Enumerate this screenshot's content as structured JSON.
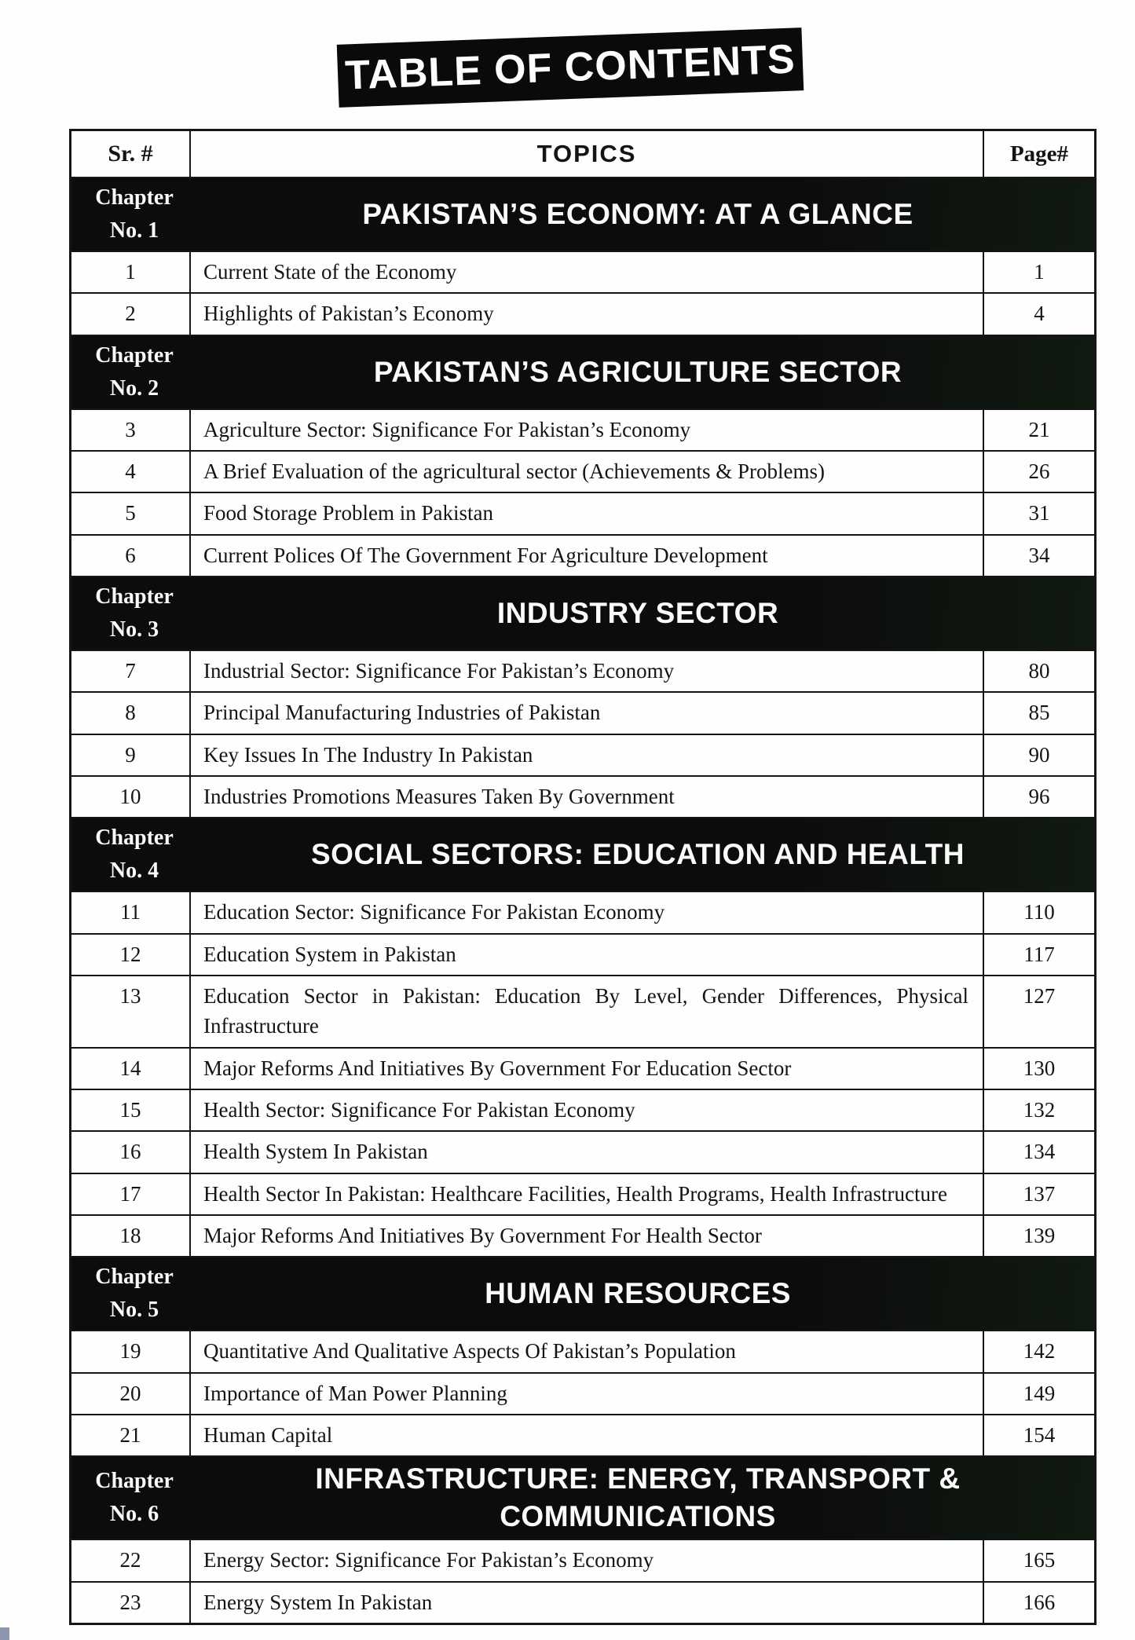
{
  "page": {
    "title": "TABLE OF CONTENTS"
  },
  "colors": {
    "band_black": "#0c0c0c",
    "paper": "#fefefe",
    "ink": "#141414",
    "artifact_blue": "#8c96ad"
  },
  "toc": {
    "headers": {
      "sr": "Sr. #",
      "topics": "TOPICS",
      "page": "Page#"
    },
    "sections": [
      {
        "chapter": "Chapter",
        "number": "No. 1",
        "title": "PAKISTAN’S ECONOMY: AT A GLANCE",
        "rows": [
          {
            "sr": "1",
            "topic": "Current State of the Economy",
            "page": "1"
          },
          {
            "sr": "2",
            "topic": "Highlights of Pakistan’s Economy",
            "page": "4"
          }
        ]
      },
      {
        "chapter": "Chapter",
        "number": "No. 2",
        "title": "PAKISTAN’S AGRICULTURE SECTOR",
        "rows": [
          {
            "sr": "3",
            "topic": "Agriculture Sector: Significance For Pakistan’s Economy",
            "page": "21"
          },
          {
            "sr": "4",
            "topic": "A Brief Evaluation of the agricultural sector (Achievements & Problems)",
            "page": "26"
          },
          {
            "sr": "5",
            "topic": "Food Storage Problem in Pakistan",
            "page": "31"
          },
          {
            "sr": "6",
            "topic": "Current Polices Of The Government For Agriculture Development",
            "page": "34"
          }
        ]
      },
      {
        "chapter": "Chapter",
        "number": "No. 3",
        "title": "INDUSTRY SECTOR",
        "rows": [
          {
            "sr": "7",
            "topic": "Industrial Sector: Significance For Pakistan’s Economy",
            "page": "80"
          },
          {
            "sr": "8",
            "topic": "Principal Manufacturing Industries of Pakistan",
            "page": "85"
          },
          {
            "sr": "9",
            "topic": "Key Issues In The Industry In Pakistan",
            "page": "90"
          },
          {
            "sr": "10",
            "topic": "Industries Promotions Measures Taken By Government",
            "page": "96"
          }
        ]
      },
      {
        "chapter": "Chapter",
        "number": "No. 4",
        "title": "SOCIAL SECTORS: EDUCATION AND HEALTH",
        "rows": [
          {
            "sr": "11",
            "topic": "Education Sector: Significance For Pakistan Economy",
            "page": "110"
          },
          {
            "sr": "12",
            "topic": "Education System in Pakistan",
            "page": "117"
          },
          {
            "sr": "13",
            "topic": "Education Sector in Pakistan: Education By Level, Gender Differences, Physical Infrastructure",
            "page": "127"
          },
          {
            "sr": "14",
            "topic": "Major Reforms And Initiatives By Government For Education Sector",
            "page": "130"
          },
          {
            "sr": "15",
            "topic": "Health Sector: Significance For Pakistan Economy",
            "page": "132"
          },
          {
            "sr": "16",
            "topic": "Health System In Pakistan",
            "page": "134"
          },
          {
            "sr": "17",
            "topic": "Health Sector In Pakistan: Healthcare Facilities, Health Programs, Health Infrastructure",
            "page": "137"
          },
          {
            "sr": "18",
            "topic": "Major Reforms And Initiatives By Government For Health Sector",
            "page": "139"
          }
        ]
      },
      {
        "chapter": "Chapter",
        "number": "No. 5",
        "title": "HUMAN RESOURCES",
        "rows": [
          {
            "sr": "19",
            "topic": "Quantitative And Qualitative Aspects Of Pakistan’s Population",
            "page": "142"
          },
          {
            "sr": "20",
            "topic": "Importance of Man Power Planning",
            "page": "149"
          },
          {
            "sr": "21",
            "topic": "Human Capital",
            "page": "154"
          }
        ]
      },
      {
        "chapter": "Chapter",
        "number": "No. 6",
        "title": "INFRASTRUCTURE: ENERGY, TRANSPORT &",
        "title2": "COMMUNICATIONS",
        "rows": [
          {
            "sr": "22",
            "topic": "Energy Sector: Significance For Pakistan’s Economy",
            "page": "165"
          },
          {
            "sr": "23",
            "topic": "Energy System In Pakistan",
            "page": "166"
          }
        ]
      }
    ]
  }
}
